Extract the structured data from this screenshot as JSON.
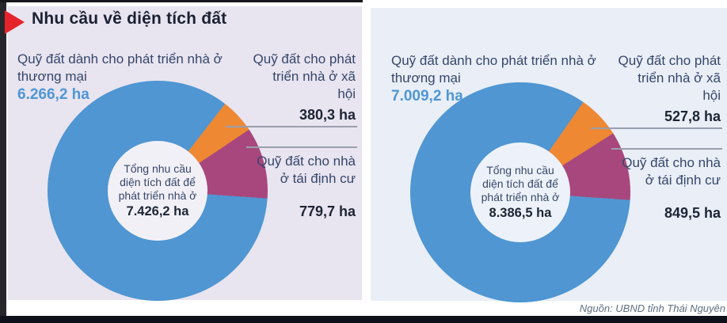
{
  "header": {
    "title": "Nhu cầu về diện tích đất"
  },
  "source_note": "Nguồn: UBND tỉnh Thái Nguyên",
  "colors": {
    "commercial_blue": "#4f96d2",
    "social_orange": "#ee8833",
    "resettlement_purple": "#a8477e",
    "title_arrow_red": "#e6232b",
    "panel_left_bg": "#e8e4f0",
    "panel_right_bg": "#e9eef7"
  },
  "chart_data": [
    {
      "type": "pie",
      "donut": true,
      "start_angle": 94,
      "legend_position": "callout-labels",
      "center_label": "Tổng nhu cầu diện tích đất để phát triển nhà ở",
      "center_value": "7.426,2 ha",
      "total": 7426.2,
      "segments": [
        {
          "name": "Quỹ đất dành cho phát triển nhà ở thương mại",
          "value": 6266.2,
          "value_display": "6.266,2 ha",
          "color": "#4f96d2"
        },
        {
          "name": "Quỹ đất cho phát triển nhà ở xã hội",
          "value": 380.3,
          "value_display": "380,3 ha",
          "color": "#ee8833"
        },
        {
          "name": "Quỹ đất cho nhà ở tái định cư",
          "value": 779.7,
          "value_display": "779,7 ha",
          "color": "#a8477e"
        }
      ]
    },
    {
      "type": "pie",
      "donut": true,
      "start_angle": 94,
      "legend_position": "callout-labels",
      "center_label": "Tổng nhu cầu diện tích đất để phát triển nhà ở",
      "center_value": "8.386,5 ha",
      "total": 8386.5,
      "segments": [
        {
          "name": "Quỹ đất dành cho phát triển nhà ở thương mại",
          "value": 7009.2,
          "value_display": "7.009,2 ha",
          "color": "#4f96d2"
        },
        {
          "name": "Quỹ đất cho phát triển nhà ở xã hội",
          "value": 527.8,
          "value_display": "527,8 ha",
          "color": "#ee8833"
        },
        {
          "name": "Quỹ đất cho nhà ở tái định cư",
          "value": 849.5,
          "value_display": "849,5 ha",
          "color": "#a8477e"
        }
      ]
    }
  ]
}
